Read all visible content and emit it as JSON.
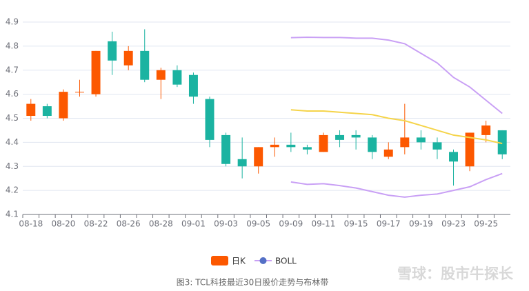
{
  "chart_data": {
    "type": "candlestick",
    "caption": "图3: TCL科技最近30日股价走势与布林带",
    "watermark": "雪球：股市牛探长",
    "categories": [
      "08-18",
      null,
      "08-20",
      null,
      "08-22",
      null,
      "08-26",
      null,
      "08-28",
      null,
      "09-01",
      null,
      "09-03",
      null,
      "09-05",
      null,
      "09-09",
      null,
      "09-11",
      null,
      "09-15",
      null,
      "09-17",
      null,
      "09-19",
      null,
      "09-23",
      null,
      "09-25",
      null
    ],
    "ylim": [
      4.1,
      4.9
    ],
    "yticks": [
      4.1,
      4.2,
      4.3,
      4.4,
      4.5,
      4.6,
      4.7,
      4.8,
      4.9
    ],
    "grid": true,
    "candles": {
      "name": "日K",
      "up_color": "#fc5800",
      "down_color": "#1bb3a1",
      "open": [
        4.51,
        4.55,
        4.5,
        4.61,
        4.6,
        4.82,
        4.72,
        4.78,
        4.66,
        4.7,
        4.68,
        4.58,
        4.43,
        4.33,
        4.3,
        4.38,
        4.39,
        4.38,
        4.36,
        4.43,
        4.43,
        4.42,
        4.34,
        4.38,
        4.42,
        4.4,
        4.36,
        4.3,
        4.43,
        4.45
      ],
      "close": [
        4.56,
        4.51,
        4.61,
        4.61,
        4.78,
        4.74,
        4.78,
        4.66,
        4.7,
        4.64,
        4.59,
        4.41,
        4.31,
        4.3,
        4.38,
        4.39,
        4.38,
        4.37,
        4.43,
        4.41,
        4.42,
        4.36,
        4.37,
        4.42,
        4.4,
        4.37,
        4.32,
        4.44,
        4.47,
        4.35
      ],
      "high": [
        4.58,
        4.56,
        4.62,
        4.66,
        4.78,
        4.86,
        4.8,
        4.87,
        4.71,
        4.72,
        4.69,
        4.59,
        4.44,
        4.42,
        4.38,
        4.42,
        4.44,
        4.39,
        4.44,
        4.45,
        4.45,
        4.43,
        4.4,
        4.56,
        4.45,
        4.42,
        4.37,
        4.44,
        4.49,
        4.45
      ],
      "low": [
        4.49,
        4.5,
        4.49,
        4.59,
        4.59,
        4.68,
        4.7,
        4.65,
        4.58,
        4.63,
        4.56,
        4.38,
        4.3,
        4.25,
        4.27,
        4.34,
        4.36,
        4.35,
        4.36,
        4.38,
        4.37,
        4.33,
        4.33,
        4.35,
        4.37,
        4.33,
        4.22,
        4.28,
        4.4,
        4.33
      ]
    },
    "boll": {
      "name": "BOLL",
      "color": "#c9a0f5",
      "mid_color": "#f5d44a",
      "marker_color": "#5470c6",
      "upper": [
        null,
        null,
        null,
        null,
        null,
        null,
        null,
        null,
        null,
        null,
        null,
        null,
        null,
        null,
        null,
        null,
        4.835,
        4.837,
        4.836,
        4.836,
        4.833,
        4.833,
        4.825,
        4.81,
        4.77,
        4.73,
        4.67,
        4.63,
        4.575,
        4.52
      ],
      "mid": [
        null,
        null,
        null,
        null,
        null,
        null,
        null,
        null,
        null,
        null,
        null,
        null,
        null,
        null,
        null,
        null,
        4.535,
        4.53,
        4.53,
        4.525,
        4.52,
        4.515,
        4.5,
        4.49,
        4.47,
        4.45,
        4.43,
        4.42,
        4.41,
        4.395
      ],
      "lower": [
        null,
        null,
        null,
        null,
        null,
        null,
        null,
        null,
        null,
        null,
        null,
        null,
        null,
        null,
        null,
        null,
        4.235,
        4.225,
        4.228,
        4.22,
        4.21,
        4.195,
        4.18,
        4.172,
        4.18,
        4.185,
        4.2,
        4.215,
        4.245,
        4.27
      ]
    }
  }
}
